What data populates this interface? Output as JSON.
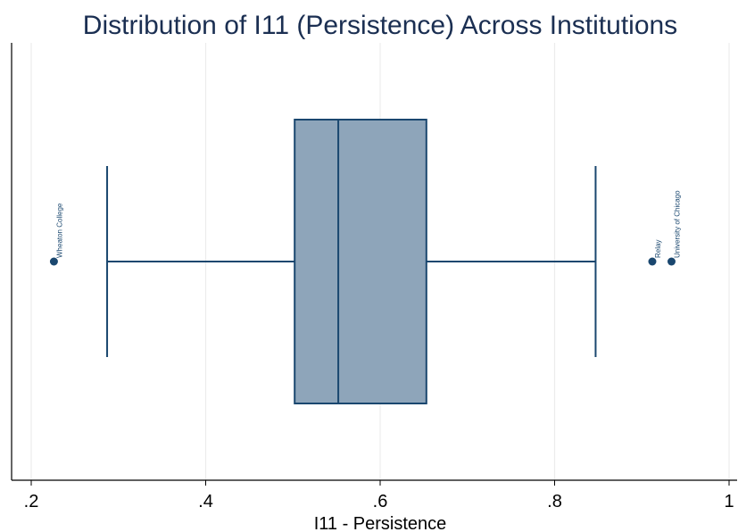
{
  "chart_data": {
    "type": "boxplot",
    "title": "Distribution of I11 (Persistence) Across Institutions",
    "xlabel": "I11 - Persistence",
    "ylabel": "",
    "xlim": [
      0.2,
      1.0
    ],
    "x_ticks": [
      {
        "value": 0.2,
        "label": ".2"
      },
      {
        "value": 0.4,
        "label": ".4"
      },
      {
        "value": 0.6,
        "label": ".6"
      },
      {
        "value": 0.8,
        "label": ".8"
      },
      {
        "value": 1.0,
        "label": "1"
      }
    ],
    "grid": true,
    "box": {
      "whisker_low": 0.287,
      "q1": 0.502,
      "median": 0.552,
      "q3": 0.653,
      "whisker_high": 0.847
    },
    "outliers": [
      {
        "x": 0.226,
        "label": "Wheaton College"
      },
      {
        "x": 0.912,
        "label": "Relay"
      },
      {
        "x": 0.934,
        "label": "University of Chicago"
      }
    ],
    "colors": {
      "box_fill": "#8ea5ba",
      "box_stroke": "#1a476f",
      "grid": "#ececec",
      "title": "#1b2f52",
      "axis": "#000000"
    }
  }
}
